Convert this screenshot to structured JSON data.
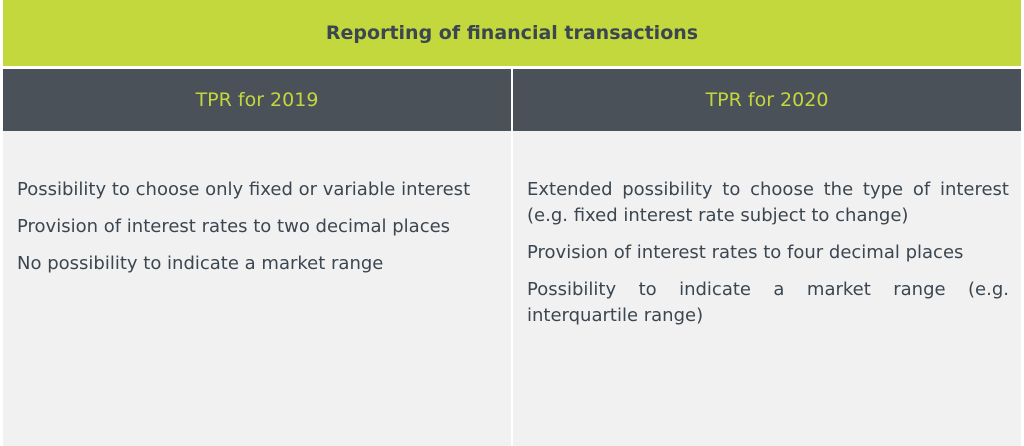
{
  "title": "Reporting of financial transactions",
  "columns": [
    {
      "header": "TPR for 2019",
      "items": [
        "Possibility to choose only fixed or variable interest",
        "Provision of interest rates to two decimal places",
        "No possibility to indicate a market range"
      ]
    },
    {
      "header": "TPR for 2020",
      "items": [
        "Extended possibility to choose the type of interest (e.g. fixed interest rate subject to change)",
        "Provision of interest rates to four decimal places",
        "Possibility to indicate a market range (e.g. interquartile range)"
      ]
    }
  ],
  "colors": {
    "accent": "#c3d83c",
    "header_bg": "#4b5159",
    "body_bg": "#f1f1f1",
    "text": "#3b4650"
  }
}
